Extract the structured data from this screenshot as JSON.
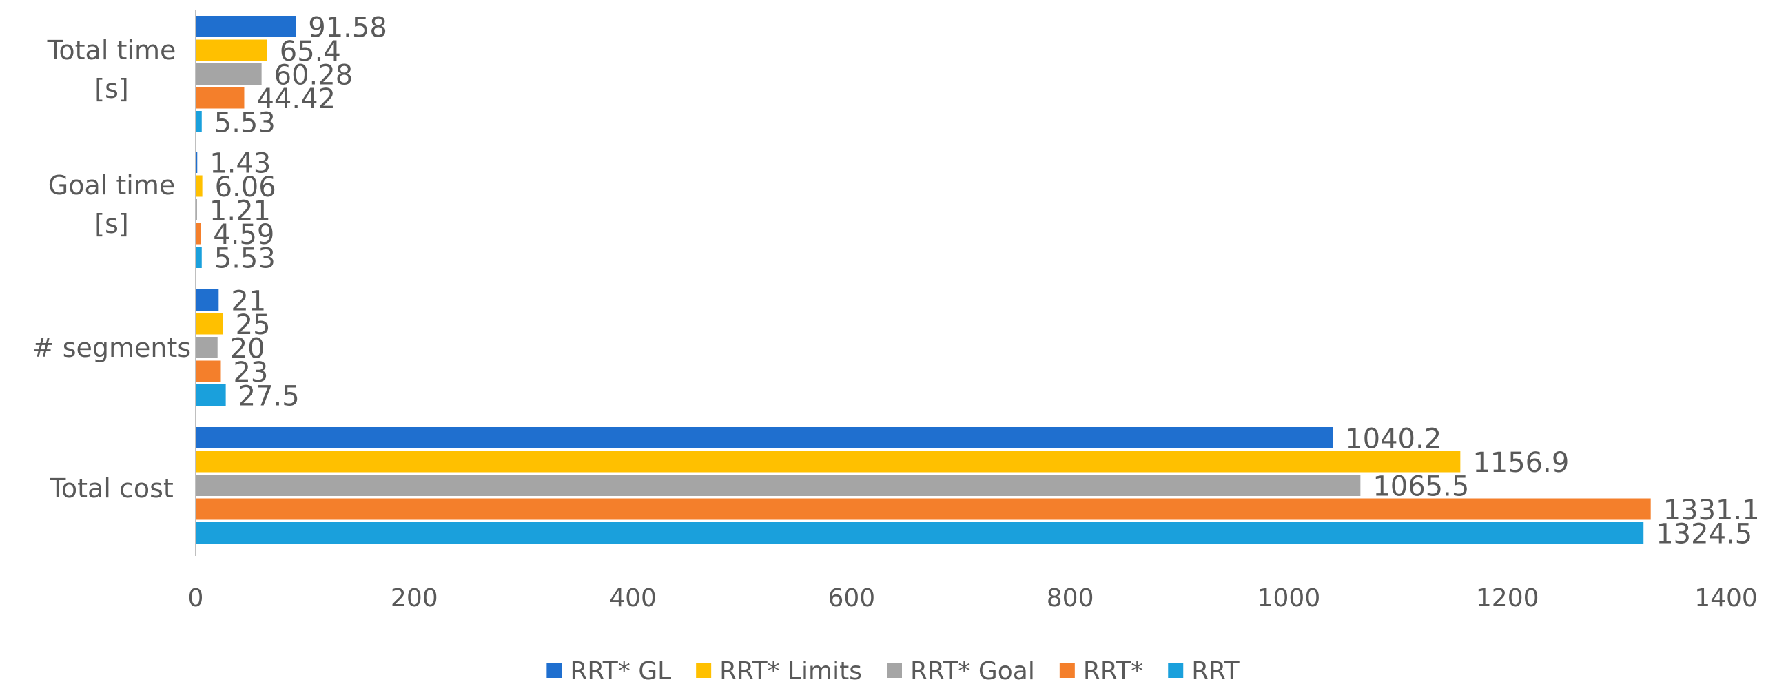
{
  "chart_data": {
    "type": "bar",
    "orientation": "horizontal",
    "categories": [
      {
        "lines": [
          "Total time",
          "[s]"
        ]
      },
      {
        "lines": [
          "Goal time",
          "[s]"
        ]
      },
      {
        "lines": [
          "# segments"
        ]
      },
      {
        "lines": [
          "Total cost"
        ]
      }
    ],
    "series": [
      {
        "name": "RRT* GL",
        "color": "#1f6fcf",
        "values": [
          91.58,
          1.43,
          21,
          1040.2
        ]
      },
      {
        "name": "RRT* Limits",
        "color": "#ffc000",
        "values": [
          65.4,
          6.06,
          25,
          1156.9
        ]
      },
      {
        "name": "RRT* Goal",
        "color": "#a5a5a5",
        "values": [
          60.28,
          1.21,
          20,
          1065.5
        ]
      },
      {
        "name": "RRT*",
        "color": "#f47f2b",
        "values": [
          44.42,
          4.59,
          23,
          1331.1
        ]
      },
      {
        "name": "RRT",
        "color": "#1aa0dc",
        "values": [
          5.53,
          5.53,
          27.5,
          1324.5
        ]
      }
    ],
    "value_labels": [
      [
        "91.58",
        "1.43",
        "21",
        "1040.2"
      ],
      [
        "65.4",
        "6.06",
        "25",
        "1156.9"
      ],
      [
        "60.28",
        "1.21",
        "20",
        "1065.5"
      ],
      [
        "44.42",
        "4.59",
        "23",
        "1331.1"
      ],
      [
        "5.53",
        "5.53",
        "27.5",
        "1324.5"
      ]
    ],
    "xlim": [
      0,
      1400
    ],
    "xticks": [
      0,
      200,
      400,
      600,
      800,
      1000,
      1200,
      1400
    ],
    "grid": false,
    "legend_position": "bottom",
    "title": "",
    "xlabel": "",
    "ylabel": ""
  }
}
